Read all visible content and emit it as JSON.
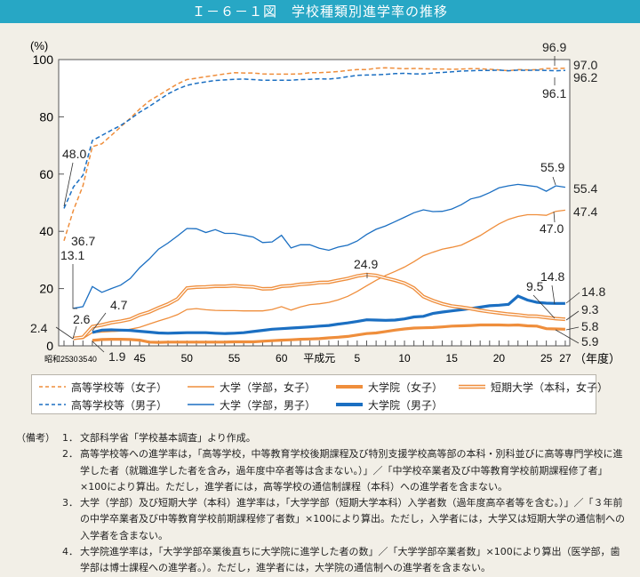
{
  "title": "Ｉ－６－１図　学校種類別進学率の推移",
  "chart_data": {
    "type": "line",
    "title": "Ｉ－６－１図　学校種類別進学率の推移",
    "ylabel": "(%)",
    "xlabel_unit": "（年度）",
    "ylim": [
      0,
      100
    ],
    "yticks": [
      "0",
      "20",
      "40",
      "60",
      "80",
      "100"
    ],
    "ytick_values": [
      0,
      20,
      40,
      60,
      80,
      100
    ],
    "x": [
      "昭和25",
      "昭和30",
      "昭和35",
      "昭和40",
      "41",
      "42",
      "43",
      "44",
      "45",
      "46",
      "47",
      "48",
      "49",
      "50",
      "51",
      "52",
      "53",
      "54",
      "55",
      "56",
      "57",
      "58",
      "59",
      "60",
      "61",
      "62",
      "63",
      "平成元",
      "2",
      "3",
      "4",
      "5",
      "6",
      "7",
      "8",
      "9",
      "10",
      "11",
      "12",
      "13",
      "14",
      "15",
      "16",
      "17",
      "18",
      "19",
      "20",
      "21",
      "22",
      "23",
      "24",
      "25",
      "26",
      "27"
    ],
    "xtick_labels": [
      "昭和25",
      "30",
      "35",
      "40",
      "45",
      "50",
      "55",
      "60",
      "平成元",
      "5",
      "10",
      "15",
      "20",
      "25",
      "27"
    ],
    "grid": false,
    "legend_placement": "bottom",
    "series": [
      {
        "name": "高等学校等（女子）",
        "color": "#ef8e3c",
        "style": "dashed",
        "values": [
          36.7,
          47.4,
          55.9,
          69.6,
          70.6,
          73.5,
          76.5,
          79.5,
          82.7,
          85.5,
          87.5,
          89.5,
          91.5,
          93.0,
          93.5,
          94.0,
          94.5,
          95.0,
          95.4,
          95.3,
          95.3,
          95.0,
          94.9,
          94.9,
          94.9,
          95.0,
          95.4,
          95.4,
          95.6,
          95.8,
          96.2,
          96.5,
          96.5,
          97.0,
          97.1,
          97.0,
          96.8,
          96.9,
          96.8,
          96.7,
          96.7,
          96.6,
          96.7,
          96.8,
          96.8,
          96.6,
          96.4,
          96.1,
          96.5,
          96.4,
          96.5,
          96.9,
          96.9,
          97.0
        ]
      },
      {
        "name": "高等学校等（男子）",
        "color": "#1b6fc2",
        "style": "dashed",
        "values": [
          48.0,
          55.5,
          59.6,
          71.7,
          73.5,
          75.3,
          77.0,
          79.2,
          81.6,
          83.6,
          85.8,
          88.0,
          89.7,
          91.0,
          91.7,
          92.2,
          92.7,
          92.9,
          93.1,
          93.2,
          93.0,
          92.8,
          92.8,
          92.8,
          92.8,
          93.0,
          93.1,
          93.3,
          93.2,
          93.5,
          94.0,
          94.5,
          94.6,
          94.7,
          94.8,
          95.1,
          95.2,
          95.0,
          95.0,
          95.3,
          95.5,
          95.7,
          96.0,
          96.1,
          96.2,
          96.2,
          96.3,
          96.1,
          96.3,
          96.2,
          96.3,
          96.2,
          96.1,
          96.2
        ]
      },
      {
        "name": "大学（学部，女子）",
        "color": "#ef8e3c",
        "style": "thin",
        "values": [
          null,
          2.4,
          2.5,
          4.6,
          4.8,
          5.0,
          5.2,
          5.8,
          6.5,
          7.6,
          8.7,
          9.7,
          10.9,
          12.7,
          13.0,
          12.6,
          12.4,
          12.3,
          12.3,
          12.2,
          12.2,
          12.2,
          12.7,
          13.7,
          12.5,
          13.6,
          14.4,
          14.7,
          15.2,
          16.1,
          17.3,
          19.0,
          21.0,
          22.9,
          24.6,
          26.0,
          27.5,
          29.4,
          31.5,
          32.7,
          33.8,
          34.4,
          35.2,
          36.8,
          38.5,
          40.6,
          42.6,
          44.2,
          45.2,
          45.8,
          45.8,
          45.6,
          47.0,
          47.4
        ]
      },
      {
        "name": "大学（学部，男子）",
        "color": "#1b6fc2",
        "style": "thin",
        "values": [
          null,
          13.1,
          13.7,
          20.7,
          18.7,
          20.0,
          21.2,
          23.5,
          27.3,
          30.3,
          33.8,
          35.9,
          38.4,
          41.0,
          40.9,
          39.6,
          40.6,
          39.3,
          39.3,
          38.6,
          38.0,
          36.1,
          36.3,
          38.6,
          34.2,
          35.3,
          35.3,
          34.1,
          33.4,
          34.5,
          35.2,
          36.6,
          38.9,
          40.7,
          41.9,
          43.4,
          44.9,
          46.5,
          47.5,
          46.9,
          47.0,
          47.8,
          49.3,
          51.3,
          52.1,
          53.5,
          55.2,
          55.9,
          56.4,
          56.0,
          55.6,
          54.0,
          55.9,
          55.4
        ]
      },
      {
        "name": "大学院（女子）",
        "color": "#ef8e3c",
        "style": "thick",
        "values": [
          null,
          null,
          null,
          1.9,
          2.2,
          2.3,
          2.3,
          2.2,
          2.0,
          1.3,
          1.2,
          1.3,
          1.3,
          1.3,
          1.3,
          1.3,
          1.3,
          1.3,
          1.4,
          1.4,
          1.4,
          1.6,
          1.8,
          2.0,
          2.1,
          2.3,
          2.4,
          2.5,
          2.8,
          3.0,
          3.3,
          3.8,
          4.3,
          4.5,
          5.0,
          5.5,
          5.9,
          6.2,
          6.3,
          6.4,
          6.6,
          6.9,
          7.0,
          7.1,
          7.3,
          7.3,
          7.3,
          7.2,
          7.3,
          7.0,
          6.9,
          6.0,
          5.9,
          5.8
        ]
      },
      {
        "name": "大学院（男子）",
        "color": "#1b6fc2",
        "style": "thick",
        "values": [
          null,
          null,
          null,
          4.7,
          5.5,
          5.6,
          5.5,
          5.4,
          5.1,
          4.8,
          4.5,
          4.4,
          4.5,
          4.6,
          4.6,
          4.6,
          4.4,
          4.3,
          4.4,
          4.6,
          5.0,
          5.4,
          5.8,
          6.0,
          6.2,
          6.4,
          6.6,
          6.9,
          7.1,
          7.6,
          8.0,
          8.5,
          9.1,
          9.0,
          8.9,
          9.0,
          9.4,
          10.1,
          10.3,
          11.3,
          11.8,
          12.2,
          12.6,
          13.0,
          13.5,
          14.0,
          14.2,
          14.5,
          17.4,
          16.0,
          15.2,
          14.9,
          14.8,
          14.8
        ]
      },
      {
        "name": "短期大学（本科，女子）",
        "color": "#ef8e3c",
        "style": "double",
        "values": [
          null,
          2.6,
          3.0,
          6.7,
          7.3,
          8.1,
          8.6,
          9.3,
          10.8,
          11.8,
          13.3,
          14.6,
          16.4,
          20.2,
          20.5,
          20.6,
          20.8,
          20.8,
          21.0,
          20.7,
          20.6,
          19.9,
          20.0,
          20.8,
          21.0,
          21.5,
          21.7,
          22.1,
          22.2,
          22.9,
          23.5,
          24.4,
          24.9,
          24.6,
          23.7,
          22.9,
          21.9,
          20.2,
          17.2,
          15.8,
          14.7,
          13.9,
          13.5,
          13.0,
          12.4,
          11.9,
          11.5,
          11.1,
          10.8,
          10.4,
          10.3,
          9.9,
          9.5,
          9.3
        ]
      }
    ],
    "annotations": [
      "48.0",
      "36.7",
      "13.1",
      "2.4",
      "2.6",
      "4.7",
      "1.9",
      "24.9",
      "96.9",
      "96.1",
      "97.0",
      "96.2",
      "55.9",
      "55.4",
      "47.4",
      "47.0",
      "14.8",
      "14.8",
      "9.5",
      "9.3",
      "5.8",
      "5.9"
    ]
  },
  "legend": [
    {
      "label": "高等学校等（女子）",
      "color": "#ef8e3c",
      "style": "dashed"
    },
    {
      "label": "大学（学部，女子）",
      "color": "#ef8e3c",
      "style": "thin"
    },
    {
      "label": "大学院（女子）",
      "color": "#ef8e3c",
      "style": "thick"
    },
    {
      "label": "短期大学（本科，女子）",
      "color": "#ef8e3c",
      "style": "double"
    },
    {
      "label": "高等学校等（男子）",
      "color": "#1b6fc2",
      "style": "dashed"
    },
    {
      "label": "大学（学部，男子）",
      "color": "#1b6fc2",
      "style": "thin"
    },
    {
      "label": "大学院（男子）",
      "color": "#1b6fc2",
      "style": "thick"
    }
  ],
  "notes": {
    "head": "（備考）",
    "items": [
      {
        "num": "1．",
        "text": "文部科学省「学校基本調査」より作成。"
      },
      {
        "num": "2．",
        "text": "高等学校等への進学率は，「高等学校，中等教育学校後期課程及び特別支援学校高等部の本科・別科並びに高等専門学校に進学した者（就職進学した者を含み，過年度中卒者等は含まない。）」／「中学校卒業者及び中等教育学校前期課程修了者」×100により算出。ただし，進学者には，高等学校の通信制課程（本科）への進学者を含まない。"
      },
      {
        "num": "3．",
        "text": "大学（学部）及び短期大学（本科）進学率は，「大学学部（短期大学本科）入学者数（過年度高卒者等を含む。）」／「３年前の中学卒業者及び中等教育学校前期課程修了者数」×100により算出。ただし，入学者には，大学又は短期大学の通信制への入学者を含まない。"
      },
      {
        "num": "4．",
        "text": "大学院進学率は，「大学学部卒業後直ちに大学院に進学した者の数」／「大学学部卒業者数」×100により算出（医学部，歯学部は博士課程への進学者。）。ただし，進学者には，大学院の通信制への進学者を含まない。"
      }
    ]
  }
}
